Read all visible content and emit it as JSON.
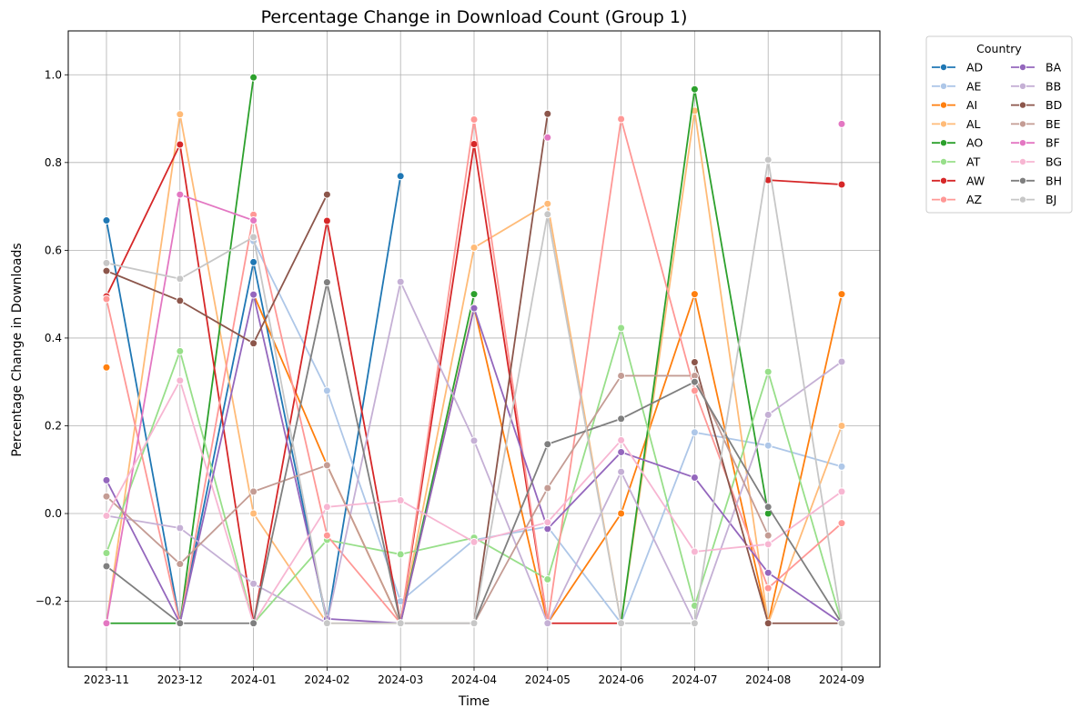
{
  "chart_data": {
    "type": "line",
    "title": "Percentage Change in Download Count (Group 1)",
    "xlabel": "Time",
    "ylabel": "Percentage Change in Downloads",
    "categories": [
      "2023-11",
      "2023-12",
      "2024-01",
      "2024-02",
      "2024-03",
      "2024-04",
      "2024-05",
      "2024-06",
      "2024-07",
      "2024-08",
      "2024-09"
    ],
    "ylim": [
      -0.35,
      1.1
    ],
    "yticks": [
      -0.2,
      0.0,
      0.2,
      0.4,
      0.6,
      0.8,
      1.0
    ],
    "ytick_labels": [
      "−0.2",
      "0.0",
      "0.2",
      "0.4",
      "0.6",
      "0.8",
      "1.0"
    ],
    "grid": true,
    "legend": {
      "title": "Country",
      "placement": "outside upper right",
      "columns": 2
    },
    "series": [
      {
        "name": "AD",
        "color": "#1f77b4",
        "values": [
          0.668,
          -0.25,
          0.573,
          -0.25,
          0.769,
          null,
          null,
          null,
          null,
          null,
          null
        ]
      },
      {
        "name": "AE",
        "color": "#aec7e8",
        "values": [
          null,
          null,
          0.621,
          0.28,
          -0.2,
          -0.06,
          -0.03,
          -0.25,
          0.185,
          0.155,
          0.107
        ]
      },
      {
        "name": "AI",
        "color": "#ff7f0e",
        "values": [
          0.333,
          null,
          0.5,
          0.11,
          -0.25,
          0.47,
          -0.25,
          0.0,
          0.5,
          -0.25,
          0.5
        ]
      },
      {
        "name": "AL",
        "color": "#ffbb78",
        "values": [
          -0.25,
          0.91,
          0.0,
          -0.25,
          -0.25,
          0.606,
          0.706,
          -0.25,
          0.918,
          -0.25,
          0.2
        ]
      },
      {
        "name": "AO",
        "color": "#2ca02c",
        "values": [
          -0.25,
          -0.25,
          0.994,
          null,
          -0.25,
          0.5,
          null,
          -0.25,
          0.967,
          0.0,
          null
        ]
      },
      {
        "name": "AT",
        "color": "#98df8a",
        "values": [
          -0.09,
          0.37,
          -0.25,
          -0.06,
          -0.093,
          -0.055,
          -0.15,
          0.423,
          -0.21,
          0.323,
          -0.25
        ]
      },
      {
        "name": "AW",
        "color": "#d62728",
        "values": [
          0.495,
          0.841,
          -0.25,
          0.667,
          -0.25,
          0.842,
          -0.25,
          -0.25,
          null,
          0.76,
          0.75
        ]
      },
      {
        "name": "AZ",
        "color": "#ff9896",
        "values": [
          0.489,
          -0.25,
          0.681,
          -0.05,
          -0.25,
          0.898,
          -0.25,
          0.899,
          0.28,
          -0.17,
          -0.022
        ]
      },
      {
        "name": "BA",
        "color": "#9467bd",
        "values": [
          0.076,
          -0.25,
          0.499,
          -0.24,
          -0.25,
          0.468,
          -0.035,
          0.14,
          0.082,
          -0.135,
          -0.25
        ]
      },
      {
        "name": "BB",
        "color": "#c5b0d5",
        "values": [
          -0.005,
          -0.033,
          -0.16,
          -0.25,
          0.528,
          0.166,
          -0.25,
          0.095,
          -0.25,
          0.225,
          0.346
        ]
      },
      {
        "name": "BD",
        "color": "#8c564b",
        "values": [
          0.553,
          0.485,
          0.388,
          0.727,
          null,
          -0.25,
          0.911,
          null,
          0.345,
          -0.25,
          -0.25
        ]
      },
      {
        "name": "BE",
        "color": "#c49c94",
        "values": [
          0.039,
          -0.115,
          0.05,
          0.11,
          -0.25,
          -0.25,
          0.058,
          0.314,
          0.314,
          -0.05,
          null
        ]
      },
      {
        "name": "BF",
        "color": "#e377c2",
        "values": [
          -0.25,
          0.727,
          0.668,
          null,
          null,
          null,
          0.857,
          null,
          null,
          null,
          0.888
        ]
      },
      {
        "name": "BG",
        "color": "#f7b6d2",
        "values": [
          -0.005,
          0.303,
          -0.25,
          0.015,
          0.03,
          -0.065,
          -0.02,
          0.167,
          -0.087,
          -0.07,
          0.05
        ]
      },
      {
        "name": "BH",
        "color": "#7f7f7f",
        "values": [
          -0.12,
          -0.25,
          -0.25,
          0.527,
          -0.25,
          -0.25,
          0.158,
          0.216,
          0.3,
          0.015,
          -0.25
        ]
      },
      {
        "name": "BJ",
        "color": "#c7c7c7",
        "values": [
          0.571,
          0.535,
          0.63,
          -0.25,
          -0.25,
          -0.25,
          0.682,
          -0.25,
          -0.25,
          0.806,
          -0.25
        ]
      }
    ]
  }
}
